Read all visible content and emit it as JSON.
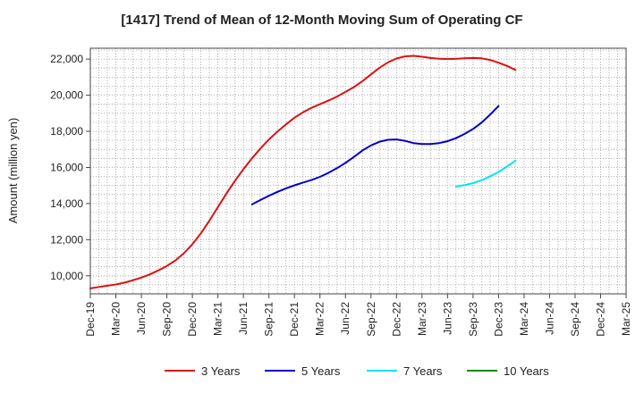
{
  "chart_data": {
    "type": "line",
    "title": "[1417]  Trend of Mean of 12-Month Moving Sum of Operating CF",
    "xlabel": "",
    "ylabel": "Amount (million yen)",
    "ylim": [
      9000,
      22600
    ],
    "yticks": [
      10000,
      12000,
      14000,
      16000,
      18000,
      20000,
      22000
    ],
    "ytick_labels": [
      "10,000",
      "12,000",
      "14,000",
      "16,000",
      "18,000",
      "20,000",
      "22,000"
    ],
    "grid": true,
    "legend_position": "bottom",
    "x_start": "Dec-19",
    "x_months": 63,
    "xticks": [
      {
        "m": 0,
        "label": "Dec-19"
      },
      {
        "m": 3,
        "label": "Mar-20"
      },
      {
        "m": 6,
        "label": "Jun-20"
      },
      {
        "m": 9,
        "label": "Sep-20"
      },
      {
        "m": 12,
        "label": "Dec-20"
      },
      {
        "m": 15,
        "label": "Mar-21"
      },
      {
        "m": 18,
        "label": "Jun-21"
      },
      {
        "m": 21,
        "label": "Sep-21"
      },
      {
        "m": 24,
        "label": "Dec-21"
      },
      {
        "m": 27,
        "label": "Mar-22"
      },
      {
        "m": 30,
        "label": "Jun-22"
      },
      {
        "m": 33,
        "label": "Sep-22"
      },
      {
        "m": 36,
        "label": "Dec-22"
      },
      {
        "m": 39,
        "label": "Mar-23"
      },
      {
        "m": 42,
        "label": "Jun-23"
      },
      {
        "m": 45,
        "label": "Sep-23"
      },
      {
        "m": 48,
        "label": "Dec-23"
      },
      {
        "m": 51,
        "label": "Mar-24"
      },
      {
        "m": 54,
        "label": "Jun-24"
      },
      {
        "m": 57,
        "label": "Sep-24"
      },
      {
        "m": 60,
        "label": "Dec-24"
      },
      {
        "m": 63,
        "label": "Mar-25"
      }
    ],
    "series": [
      {
        "name": "3 Years",
        "color": "#dd1111",
        "start_month": 0,
        "values": [
          9300,
          9380,
          9450,
          9520,
          9620,
          9750,
          9900,
          10080,
          10300,
          10550,
          10850,
          11250,
          11750,
          12350,
          13050,
          13800,
          14550,
          15250,
          15900,
          16500,
          17050,
          17550,
          17980,
          18380,
          18750,
          19050,
          19300,
          19500,
          19700,
          19920,
          20180,
          20450,
          20780,
          21150,
          21520,
          21820,
          22030,
          22150,
          22180,
          22130,
          22060,
          22020,
          22000,
          22010,
          22040,
          22060,
          22040,
          21950,
          21800,
          21620,
          21400
        ]
      },
      {
        "name": "5 Years",
        "color": "#0000cc",
        "start_month": 19,
        "values": [
          13950,
          14200,
          14430,
          14650,
          14840,
          15010,
          15160,
          15300,
          15480,
          15700,
          15960,
          16250,
          16580,
          16940,
          17220,
          17420,
          17530,
          17550,
          17470,
          17350,
          17300,
          17300,
          17350,
          17450,
          17620,
          17850,
          18130,
          18480,
          18920,
          19400
        ]
      },
      {
        "name": "7 Years",
        "color": "#00e5ee",
        "start_month": 43,
        "values": [
          14950,
          15020,
          15130,
          15290,
          15500,
          15750,
          16050,
          16380
        ]
      },
      {
        "name": "10 Years",
        "color": "#118811",
        "start_month": 51,
        "values": []
      }
    ]
  }
}
